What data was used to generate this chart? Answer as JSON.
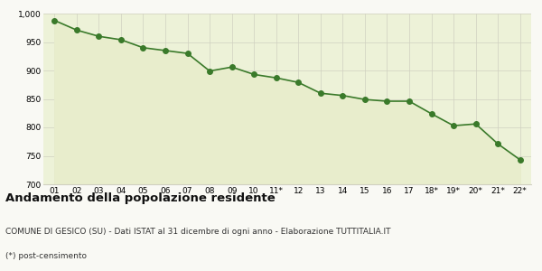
{
  "x_labels": [
    "01",
    "02",
    "03",
    "04",
    "05",
    "06",
    "07",
    "08",
    "09",
    "10",
    "11*",
    "12",
    "13",
    "14",
    "15",
    "16",
    "17",
    "18*",
    "19*",
    "20*",
    "21*",
    "22*"
  ],
  "values": [
    988,
    971,
    960,
    954,
    940,
    935,
    930,
    899,
    906,
    893,
    887,
    879,
    860,
    856,
    849,
    846,
    846,
    824,
    803,
    806,
    771,
    743
  ],
  "line_color": "#3a7a2a",
  "fill_color": "#e8edcc",
  "marker_color": "#3a7a2a",
  "bg_color": "#f9f9f4",
  "plot_bg_color": "#edf2d8",
  "grid_color": "#d0d0c0",
  "ylim": [
    700,
    1000
  ],
  "yticks": [
    700,
    750,
    800,
    850,
    900,
    950,
    1000
  ],
  "title": "Andamento della popolazione residente",
  "subtitle": "COMUNE DI GESICO (SU) - Dati ISTAT al 31 dicembre di ogni anno - Elaborazione TUTTITALIA.IT",
  "footnote": "(*) post-censimento",
  "title_fontsize": 9.5,
  "subtitle_fontsize": 6.5,
  "footnote_fontsize": 6.5,
  "tick_fontsize": 6.5,
  "marker_size": 4
}
